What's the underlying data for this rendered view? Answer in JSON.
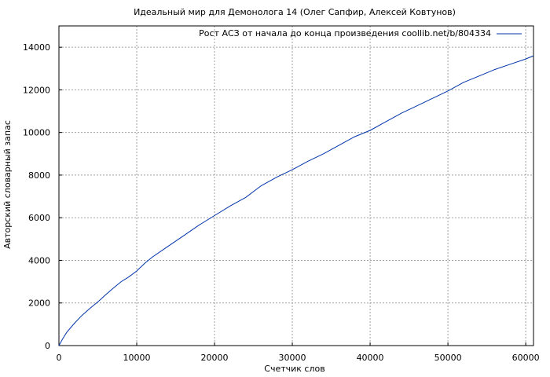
{
  "chart_data": {
    "type": "line",
    "title": "Идеальный мир для Демонолога 14 (Олег Сапфир, Алексей Ковтунов)",
    "xlabel": "Счетчик слов",
    "ylabel": "Авторский словарный запас",
    "xlim": [
      0,
      61000
    ],
    "ylim": [
      0,
      15000
    ],
    "xticks": [
      0,
      10000,
      20000,
      30000,
      40000,
      50000,
      60000
    ],
    "yticks": [
      0,
      2000,
      4000,
      6000,
      8000,
      10000,
      12000,
      14000
    ],
    "grid": true,
    "legend_position": "top-right",
    "series": [
      {
        "name": "Рост АСЗ от начала до конца произведения coollib.net/b/804334",
        "color": "#0033aa",
        "x": [
          0,
          500,
          1000,
          2000,
          3000,
          4000,
          5000,
          6000,
          7000,
          8000,
          9000,
          10000,
          11000,
          12000,
          14000,
          16000,
          18000,
          20000,
          22000,
          24000,
          26000,
          28000,
          30000,
          32000,
          34000,
          36000,
          38000,
          40000,
          42000,
          44000,
          46000,
          48000,
          50000,
          52000,
          54000,
          56000,
          58000,
          60000,
          61000
        ],
        "values": [
          0,
          330,
          620,
          1050,
          1430,
          1750,
          2050,
          2380,
          2700,
          3000,
          3230,
          3500,
          3850,
          4150,
          4650,
          5150,
          5650,
          6100,
          6550,
          6950,
          7500,
          7900,
          8250,
          8650,
          9000,
          9400,
          9800,
          10100,
          10500,
          10900,
          11250,
          11600,
          11950,
          12350,
          12650,
          12950,
          13200,
          13450,
          13600
        ]
      }
    ]
  }
}
